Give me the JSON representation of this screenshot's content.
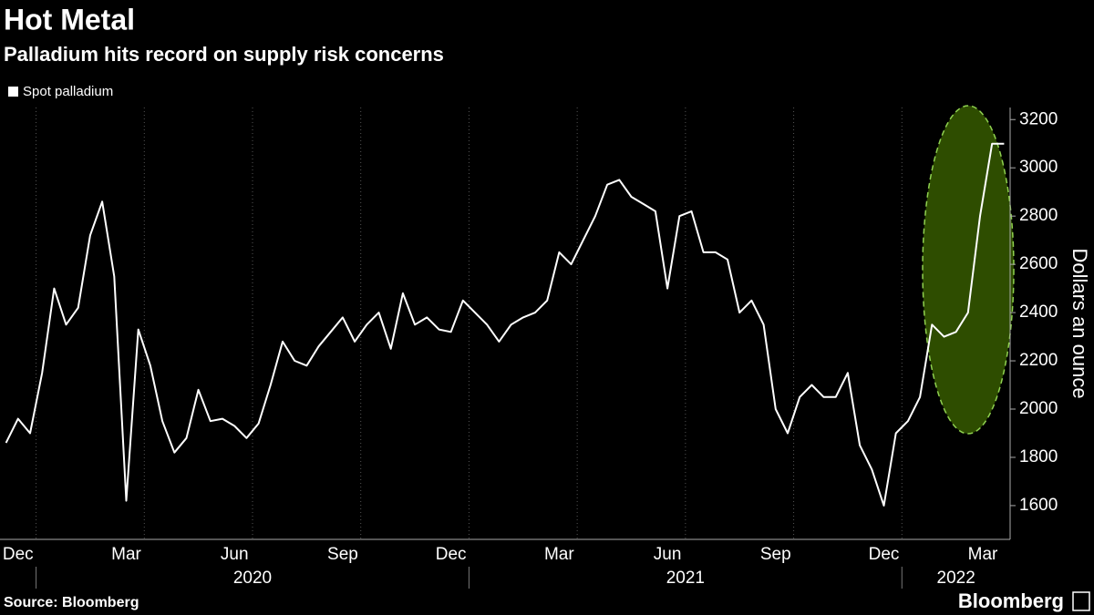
{
  "chart_data": {
    "type": "line",
    "title": "Hot Metal",
    "subtitle": "Palladium hits record on supply risk concerns",
    "y_axis_label": "Dollars an ounce",
    "source": "Source: Bloomberg",
    "brand": "Bloomberg",
    "x": [
      "2019-12",
      "2019-12",
      "2019-12",
      "2020-01",
      "2020-01",
      "2020-01",
      "2020-02",
      "2020-02",
      "2020-02",
      "2020-03",
      "2020-03",
      "2020-03",
      "2020-04",
      "2020-04",
      "2020-04",
      "2020-05",
      "2020-05",
      "2020-05",
      "2020-06",
      "2020-06",
      "2020-06",
      "2020-07",
      "2020-07",
      "2020-07",
      "2020-08",
      "2020-08",
      "2020-08",
      "2020-09",
      "2020-09",
      "2020-09",
      "2020-10",
      "2020-10",
      "2020-10",
      "2020-11",
      "2020-11",
      "2020-11",
      "2020-12",
      "2020-12",
      "2020-12",
      "2021-01",
      "2021-01",
      "2021-01",
      "2021-02",
      "2021-02",
      "2021-02",
      "2021-03",
      "2021-03",
      "2021-03",
      "2021-04",
      "2021-04",
      "2021-04",
      "2021-05",
      "2021-05",
      "2021-05",
      "2021-06",
      "2021-06",
      "2021-06",
      "2021-07",
      "2021-07",
      "2021-07",
      "2021-08",
      "2021-08",
      "2021-08",
      "2021-09",
      "2021-09",
      "2021-09",
      "2021-10",
      "2021-10",
      "2021-10",
      "2021-11",
      "2021-11",
      "2021-11",
      "2021-12",
      "2021-12",
      "2021-12",
      "2022-01",
      "2022-01",
      "2022-01",
      "2022-02",
      "2022-02",
      "2022-02",
      "2022-03",
      "2022-03",
      "2022-03"
    ],
    "series": [
      {
        "name": "Spot palladium",
        "color": "#ffffff",
        "values": [
          1860,
          1960,
          1900,
          2150,
          2500,
          2350,
          2420,
          2720,
          2860,
          2550,
          1620,
          2330,
          2180,
          1950,
          1820,
          1880,
          2080,
          1950,
          1960,
          1930,
          1880,
          1940,
          2100,
          2280,
          2200,
          2180,
          2260,
          2320,
          2380,
          2280,
          2350,
          2400,
          2250,
          2480,
          2350,
          2380,
          2330,
          2320,
          2450,
          2400,
          2350,
          2280,
          2350,
          2380,
          2400,
          2450,
          2650,
          2600,
          2700,
          2800,
          2930,
          2950,
          2880,
          2850,
          2820,
          2500,
          2800,
          2820,
          2650,
          2650,
          2620,
          2400,
          2450,
          2350,
          2000,
          1900,
          2050,
          2100,
          2050,
          2050,
          2150,
          1850,
          1750,
          1600,
          1900,
          1950,
          2050,
          2350,
          2300,
          2320,
          2400,
          2800,
          3100,
          3100
        ]
      }
    ],
    "xlim": [
      "2019-12",
      "2022-03"
    ],
    "xticks": [
      {
        "value": "2019-12",
        "label": "Dec"
      },
      {
        "value": "2020-03",
        "label": "Mar"
      },
      {
        "value": "2020-06",
        "label": "Jun"
      },
      {
        "value": "2020-09",
        "label": "Sep"
      },
      {
        "value": "2020-12",
        "label": "Dec"
      },
      {
        "value": "2021-03",
        "label": "Mar"
      },
      {
        "value": "2021-06",
        "label": "Jun"
      },
      {
        "value": "2021-09",
        "label": "Sep"
      },
      {
        "value": "2021-12",
        "label": "Dec"
      },
      {
        "value": "2022-03",
        "label": "Mar"
      }
    ],
    "years": [
      "2020",
      "2021",
      "2022"
    ],
    "ylim": [
      1460,
      3250
    ],
    "yticks": [
      1600,
      1800,
      2000,
      2200,
      2400,
      2600,
      2800,
      3000,
      3200
    ],
    "grid": true
  }
}
